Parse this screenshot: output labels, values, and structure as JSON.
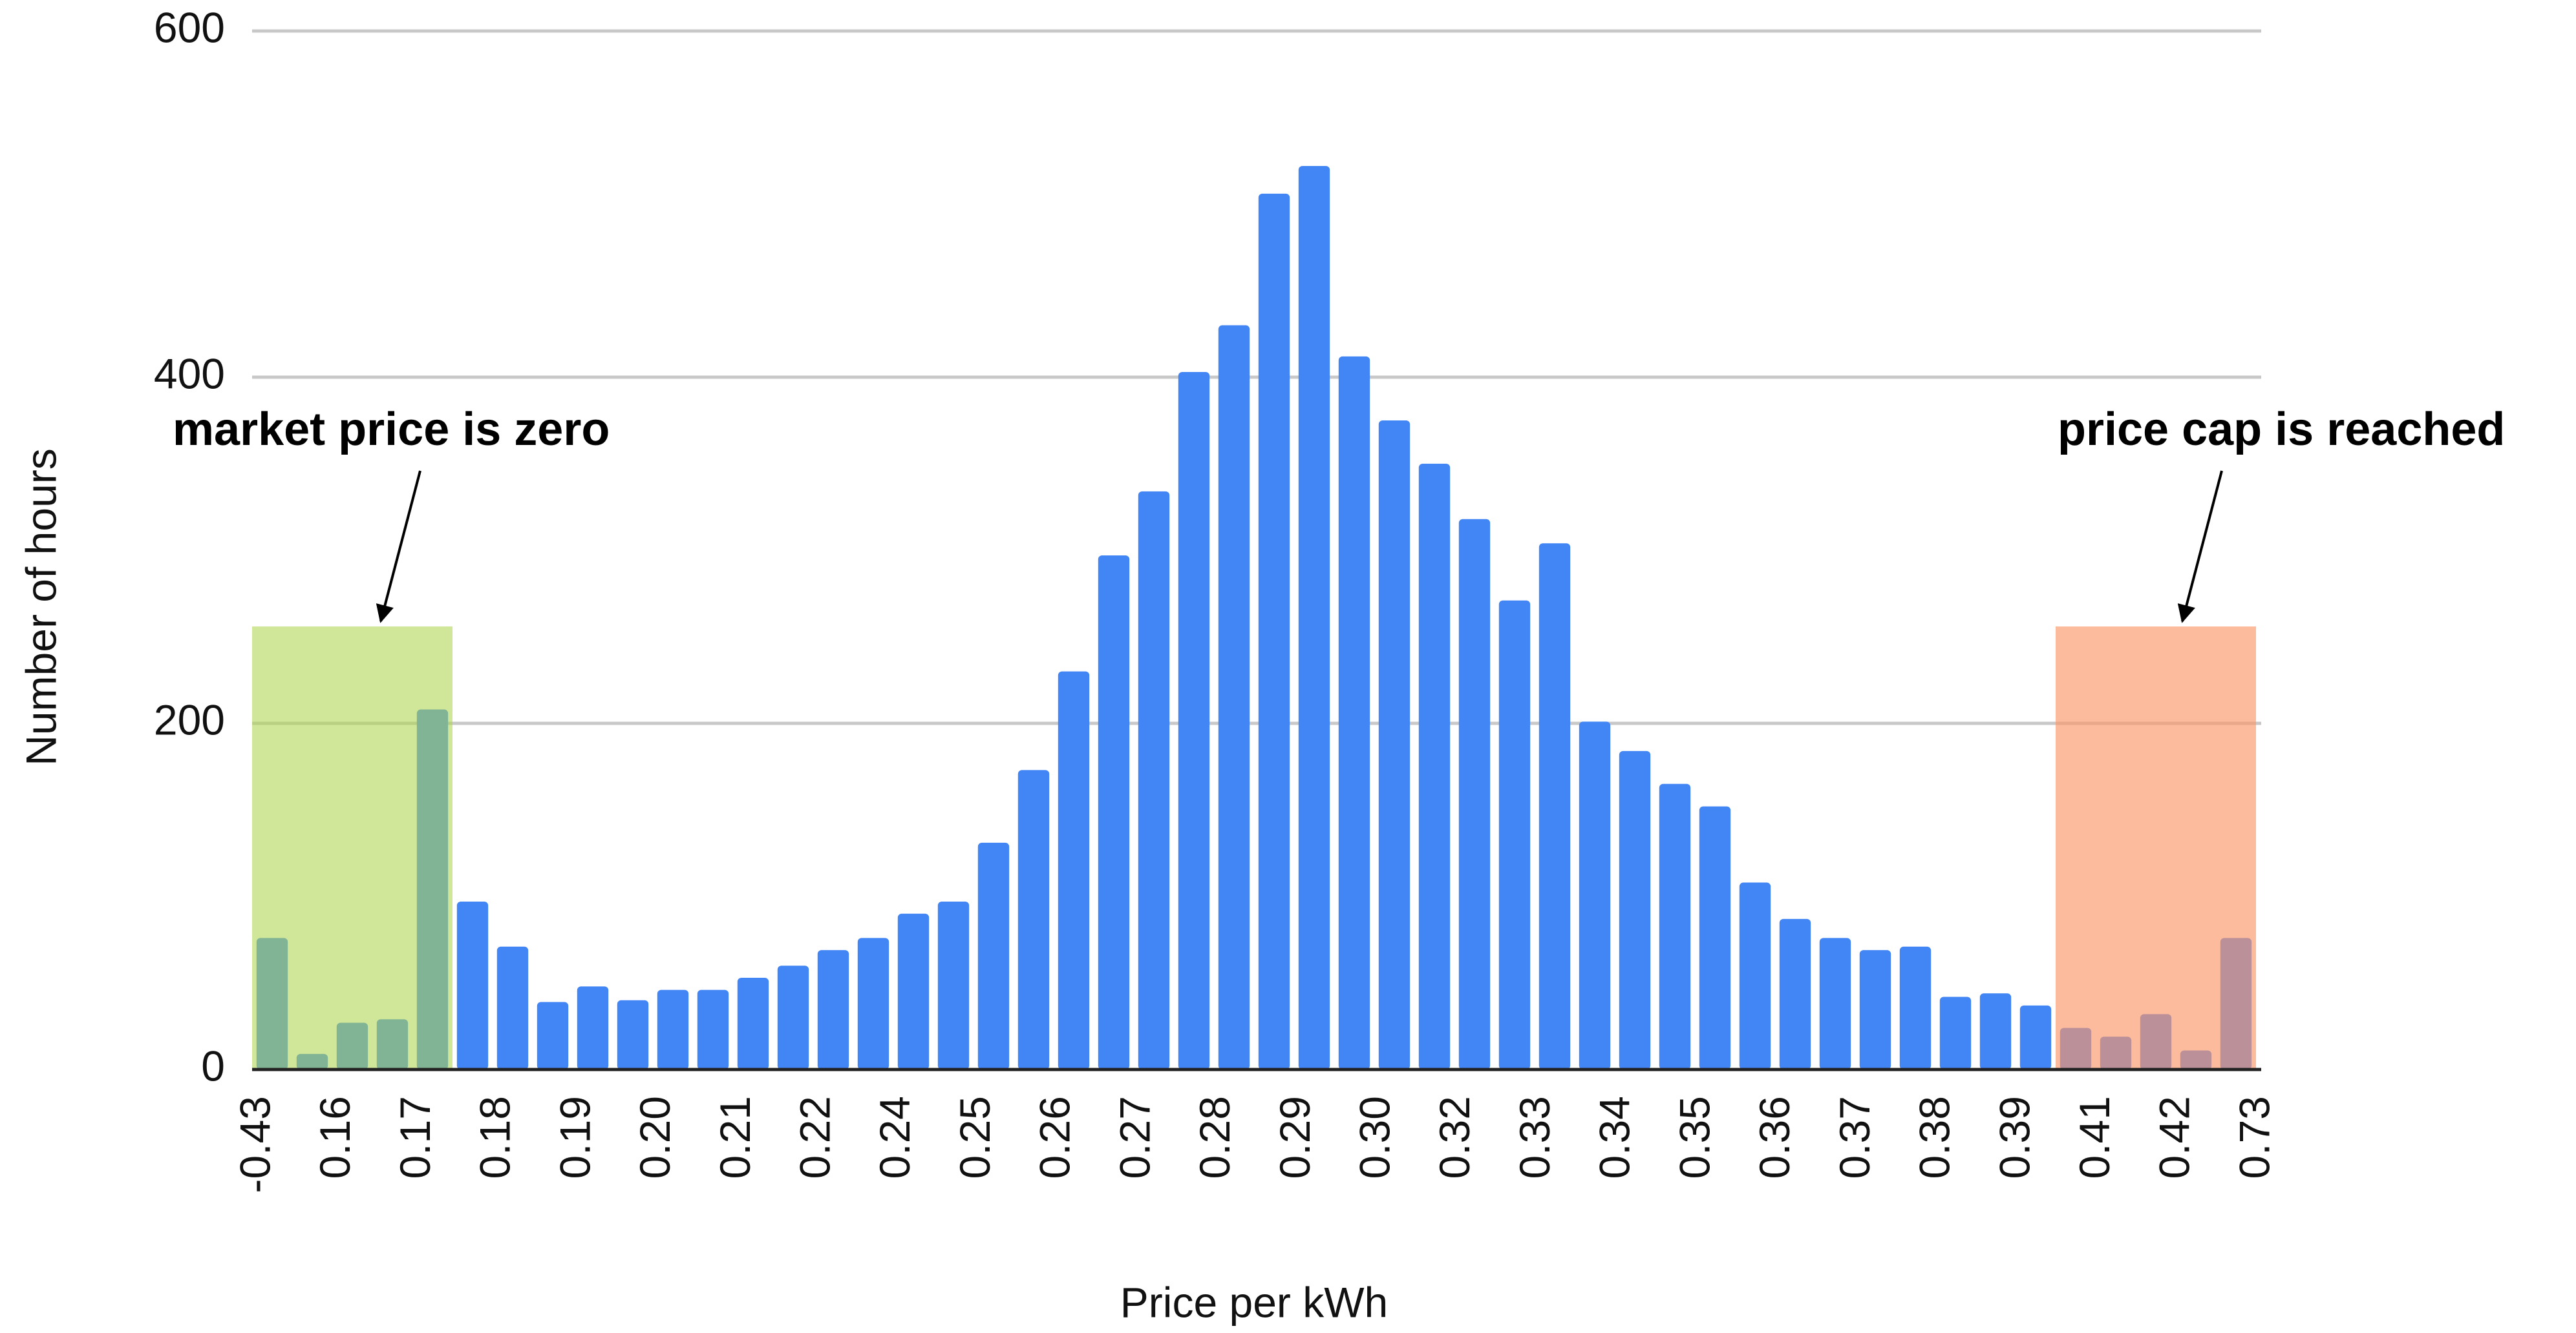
{
  "chart_data": {
    "type": "bar",
    "x_label": "Price per kWh",
    "y_label": "Number of hours",
    "categories": [
      "-0.43",
      null,
      "0.16",
      null,
      "0.17",
      null,
      "0.18",
      null,
      "0.19",
      null,
      "0.20",
      null,
      "0.21",
      null,
      "0.22",
      null,
      "0.24",
      null,
      "0.25",
      null,
      "0.26",
      null,
      "0.27",
      null,
      "0.28",
      null,
      "0.29",
      null,
      "0.30",
      null,
      "0.32",
      null,
      "0.33",
      null,
      "0.34",
      null,
      "0.35",
      null,
      "0.36",
      null,
      "0.37",
      null,
      "0.38",
      null,
      "0.39",
      null,
      "0.41",
      null,
      "0.42",
      "0.73"
    ],
    "values": [
      76,
      9,
      27,
      29,
      208,
      97,
      71,
      39,
      48,
      40,
      46,
      46,
      53,
      60,
      69,
      76,
      90,
      97,
      131,
      173,
      230,
      297,
      334,
      403,
      430,
      506,
      522,
      412,
      375,
      350,
      318,
      271,
      304,
      201,
      184,
      165,
      152,
      108,
      87,
      76,
      69,
      71,
      42,
      44,
      37,
      24,
      19,
      32,
      11,
      76
    ],
    "color": "#4285f4",
    "ylim": [
      0,
      600
    ],
    "yticks": [
      0,
      200,
      400,
      600
    ],
    "grid": true,
    "annotations": [
      "market price is zero",
      "price cap is reached"
    ]
  }
}
